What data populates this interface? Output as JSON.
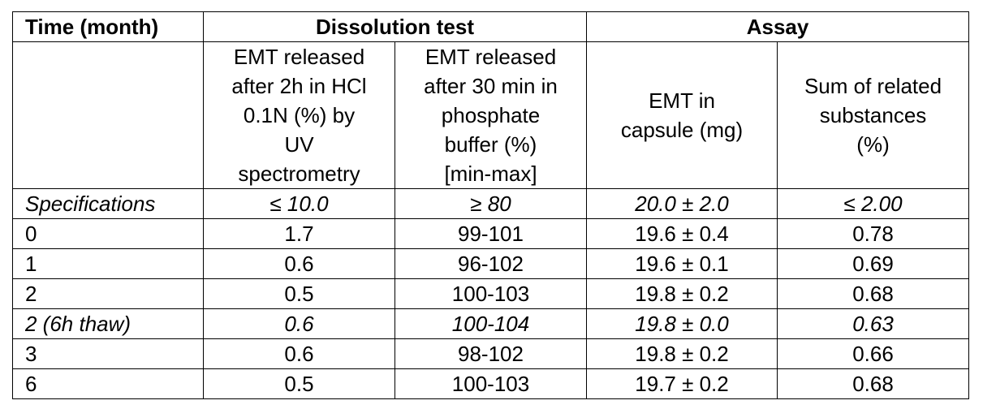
{
  "table": {
    "group_headers": {
      "time": "Time (month)",
      "dissolution": "Dissolution test",
      "assay": "Assay"
    },
    "sub_headers": {
      "time": "",
      "hcl": [
        "EMT released",
        "after 2h in HCl",
        "0.1N (%) by",
        "UV",
        "spectrometry"
      ],
      "phosphate": [
        "EMT released",
        "after 30 min in",
        "phosphate",
        "buffer (%)",
        "[min-max]"
      ],
      "emt_capsule": [
        "EMT in",
        "capsule (mg)"
      ],
      "related": [
        "Sum of related",
        "substances",
        "(%)"
      ]
    },
    "rows": [
      {
        "time": "Specifications",
        "hcl": "≤ 10.0",
        "phosphate": "≥ 80",
        "emt": "20.0 ± 2.0",
        "related": "≤ 2.00",
        "italic": true
      },
      {
        "time": "0",
        "hcl": "1.7",
        "phosphate": "99-101",
        "emt": "19.6 ± 0.4",
        "related": "0.78",
        "italic": false
      },
      {
        "time": "1",
        "hcl": "0.6",
        "phosphate": "96-102",
        "emt": "19.6 ± 0.1",
        "related": "0.69",
        "italic": false
      },
      {
        "time": "2",
        "hcl": "0.5",
        "phosphate": "100-103",
        "emt": "19.8 ± 0.2",
        "related": "0.68",
        "italic": false
      },
      {
        "time": "2 (6h thaw)",
        "hcl": "0.6",
        "phosphate": "100-104",
        "emt": "19.8 ± 0.0",
        "related": "0.63",
        "italic": true
      },
      {
        "time": "3",
        "hcl": "0.6",
        "phosphate": "98-102",
        "emt": "19.8 ± 0.2",
        "related": "0.66",
        "italic": false
      },
      {
        "time": "6",
        "hcl": "0.5",
        "phosphate": "100-103",
        "emt": "19.7 ± 0.2",
        "related": "0.68",
        "italic": false
      }
    ]
  }
}
